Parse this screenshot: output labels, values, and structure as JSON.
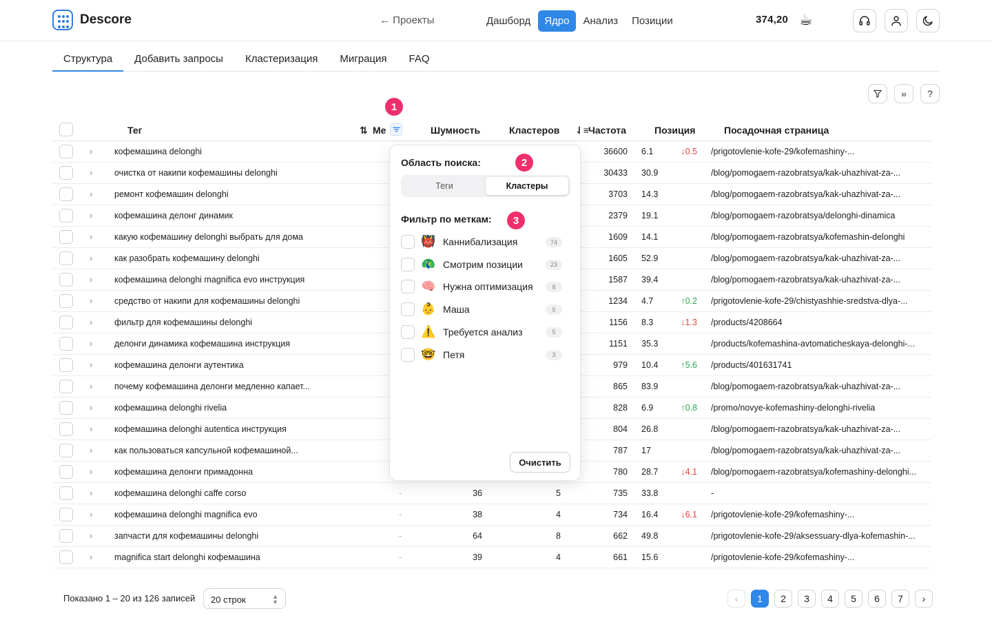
{
  "header": {
    "app_name": "Descore",
    "back_label": "← Проекты",
    "nav": [
      {
        "label": "Дашборд",
        "active": false
      },
      {
        "label": "Ядро",
        "active": true
      },
      {
        "label": "Анализ",
        "active": false
      },
      {
        "label": "Позиции",
        "active": false
      }
    ],
    "balance": "374,20",
    "coffee_emoji": "☕"
  },
  "subtabs": [
    "Структура",
    "Добавить запросы",
    "Кластеризация",
    "Миграция",
    "FAQ"
  ],
  "toolbar": {
    "help_label": "?"
  },
  "table": {
    "columns": {
      "tag": "Тег",
      "mark": "Ме",
      "noise": "Шумность",
      "clusters": "Кластеров",
      "frequency": "Частота",
      "position": "Позиция",
      "landing": "Посадочная страница"
    },
    "rows": [
      {
        "tag": "кофемашина delonghi",
        "mark": "",
        "noise": "",
        "clusters": "",
        "freq": "36600",
        "pos": "6.1",
        "delta": "↓0.5",
        "dir": "down",
        "page": "/prigotovlenie-kofe-29/kofemashiny-..."
      },
      {
        "tag": "очистка от накипи кофемашины delonghi",
        "mark": "",
        "noise": "",
        "clusters": "",
        "freq": "30433",
        "pos": "30.9",
        "delta": "",
        "dir": "",
        "page": "/blog/pomogaem-razobratsya/kak-uhazhivat-za-..."
      },
      {
        "tag": "ремонт кофемашин delonghi",
        "mark": "",
        "noise": "",
        "clusters": "",
        "freq": "3703",
        "pos": "14.3",
        "delta": "",
        "dir": "",
        "page": "/blog/pomogaem-razobratsya/kak-uhazhivat-za-..."
      },
      {
        "tag": "кофемашина делонг динамик",
        "mark": "",
        "noise": "",
        "clusters": "",
        "freq": "2379",
        "pos": "19.1",
        "delta": "",
        "dir": "",
        "page": "/blog/pomogaem-razobratsya/delonghi-dinamica"
      },
      {
        "tag": "какую кофемашину delonghi выбрать для дома",
        "mark": "",
        "noise": "",
        "clusters": "",
        "freq": "1609",
        "pos": "14.1",
        "delta": "",
        "dir": "",
        "page": "/blog/pomogaem-razobratsya/kofemashin-delonghi"
      },
      {
        "tag": "как разобрать кофемашину delonghi",
        "mark": "",
        "noise": "",
        "clusters": "",
        "freq": "1605",
        "pos": "52.9",
        "delta": "",
        "dir": "",
        "page": "/blog/pomogaem-razobratsya/kak-uhazhivat-za-..."
      },
      {
        "tag": "кофемашина delonghi magnifica evo инструкция",
        "mark": "",
        "noise": "",
        "clusters": "",
        "freq": "1587",
        "pos": "39.4",
        "delta": "",
        "dir": "",
        "page": "/blog/pomogaem-razobratsya/kak-uhazhivat-za-..."
      },
      {
        "tag": "средство от накипи для кофемашины delonghi",
        "mark": "",
        "noise": "",
        "clusters": "",
        "freq": "1234",
        "pos": "4.7",
        "delta": "↑0.2",
        "dir": "up",
        "page": "/prigotovlenie-kofe-29/chistyashhie-sredstva-dlya-..."
      },
      {
        "tag": "фильтр для кофемашины delonghi",
        "mark": "",
        "noise": "",
        "clusters": "",
        "freq": "1156",
        "pos": "8.3",
        "delta": "↓1.3",
        "dir": "down",
        "page": "/products/4208664"
      },
      {
        "tag": "делонги динамика кофемашина инструкция",
        "mark": "",
        "noise": "",
        "clusters": "",
        "freq": "1151",
        "pos": "35.3",
        "delta": "",
        "dir": "",
        "page": "/products/kofemashina-avtomaticheskaya-delonghi-..."
      },
      {
        "tag": "кофемашина делонги аутентика",
        "mark": "",
        "noise": "",
        "clusters": "",
        "freq": "979",
        "pos": "10.4",
        "delta": "↑5.6",
        "dir": "up",
        "page": "/products/401631741"
      },
      {
        "tag": "почему кофемашина делонги медленно капает...",
        "mark": "",
        "noise": "",
        "clusters": "",
        "freq": "865",
        "pos": "83.9",
        "delta": "",
        "dir": "",
        "page": "/blog/pomogaem-razobratsya/kak-uhazhivat-za-..."
      },
      {
        "tag": "кофемашина delonghi rivelia",
        "mark": "",
        "noise": "",
        "clusters": "",
        "freq": "828",
        "pos": "6.9",
        "delta": "↑0.8",
        "dir": "up",
        "page": "/promo/novye-kofemashiny-delonghi-rivelia"
      },
      {
        "tag": "кофемашина delonghi autentica инструкция",
        "mark": "",
        "noise": "",
        "clusters": "",
        "freq": "804",
        "pos": "26.8",
        "delta": "",
        "dir": "",
        "page": "/blog/pomogaem-razobratsya/kak-uhazhivat-za-..."
      },
      {
        "tag": "как пользоваться капсульной кофемашиной...",
        "mark": "",
        "noise": "",
        "clusters": "",
        "freq": "787",
        "pos": "17",
        "delta": "",
        "dir": "",
        "page": "/blog/pomogaem-razobratsya/kak-uhazhivat-za-..."
      },
      {
        "tag": "кофемашина делонги примадонна",
        "mark": "",
        "noise": "",
        "clusters": "",
        "freq": "780",
        "pos": "28.7",
        "delta": "↓4.1",
        "dir": "down",
        "page": "/blog/pomogaem-razobratsya/kofemashiny-delonghi..."
      },
      {
        "tag": "кофемашина delonghi caffe corso",
        "mark": "-",
        "noise": "36",
        "clusters": "5",
        "freq": "735",
        "pos": "33.8",
        "delta": "",
        "dir": "",
        "page": "-"
      },
      {
        "tag": "кофемашина delonghi magnifica evo",
        "mark": "-",
        "noise": "38",
        "clusters": "4",
        "freq": "734",
        "pos": "16.4",
        "delta": "↓6.1",
        "dir": "down",
        "page": "/prigotovlenie-kofe-29/kofemashiny-..."
      },
      {
        "tag": "запчасти для кофемашины delonghi",
        "mark": "-",
        "noise": "64",
        "clusters": "8",
        "freq": "662",
        "pos": "49.8",
        "delta": "",
        "dir": "",
        "page": "/prigotovlenie-kofe-29/aksessuary-dlya-kofemashin-..."
      },
      {
        "tag": "magnifica start delonghi кофемашина",
        "mark": "-",
        "noise": "39",
        "clusters": "4",
        "freq": "661",
        "pos": "15.6",
        "delta": "",
        "dir": "",
        "page": "/prigotovlenie-kofe-29/kofemashiny-..."
      }
    ]
  },
  "annotations": [
    "1",
    "2",
    "3"
  ],
  "popover": {
    "scope_title": "Область поиска:",
    "scope_options": [
      {
        "label": "Теги",
        "active": false
      },
      {
        "label": "Кластеры",
        "active": true
      }
    ],
    "labels_title": "Фильтр по меткам:",
    "labels": [
      {
        "emoji": "👹",
        "label": "Каннибализация",
        "count": "74"
      },
      {
        "emoji": "🦚",
        "label": "Смотрим позиции",
        "count": "23"
      },
      {
        "emoji": "🧠",
        "label": "Нужна оптимизация",
        "count": "8"
      },
      {
        "emoji": "👶",
        "label": "Маша",
        "count": "5"
      },
      {
        "emoji": "⚠️",
        "label": "Требуется анализ",
        "count": "5"
      },
      {
        "emoji": "🤓",
        "label": "Петя",
        "count": "3"
      }
    ],
    "clear_label": "Очистить"
  },
  "footer": {
    "shown_text": "Показано 1 – 20 из 126 записей",
    "rows_per_page": "20 строк",
    "pages": [
      "1",
      "2",
      "3",
      "4",
      "5",
      "6",
      "7"
    ],
    "current_page": "1"
  }
}
